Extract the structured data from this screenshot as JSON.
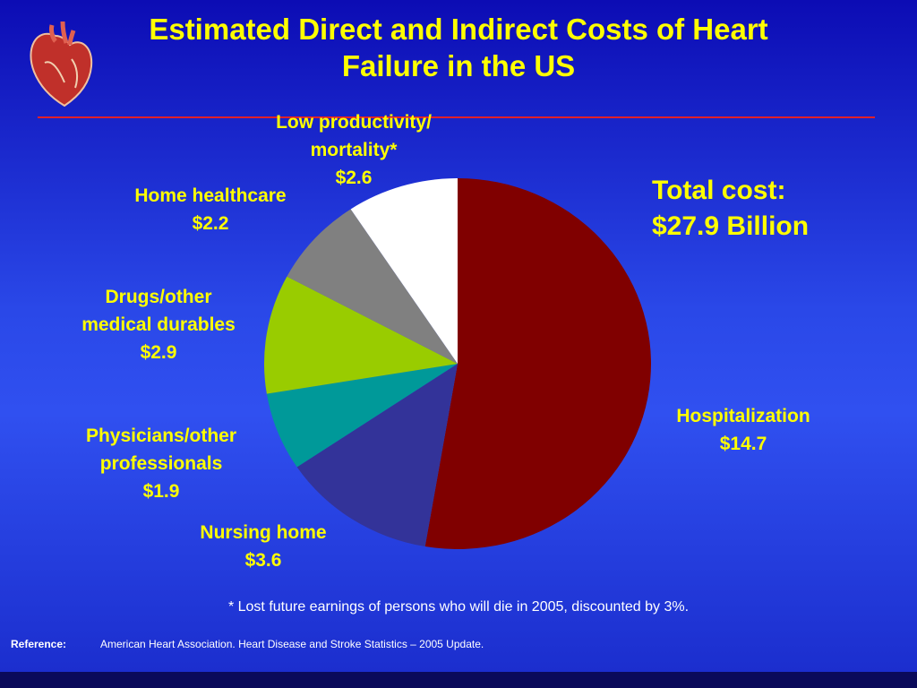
{
  "chart_data": {
    "type": "pie",
    "title": "Estimated Direct and Indirect Costs of Heart\nFailure in the US",
    "categories": [
      "Hospitalization",
      "Nursing home",
      "Physicians/other\nprofessionals",
      "Drugs/other\nmedical durables",
      "Home healthcare",
      "Low productivity/\nmortality*"
    ],
    "values": [
      14.7,
      3.6,
      1.9,
      2.9,
      2.2,
      2.6
    ],
    "value_labels": [
      "$14.7",
      "$3.6",
      "$1.9",
      "$2.9",
      "$2.2",
      "$2.6"
    ],
    "colors": [
      "#800000",
      "#333399",
      "#009999",
      "#99cc00",
      "#808080",
      "#ffffff"
    ],
    "annotations": {
      "total_label": "Total cost:",
      "total": "$27.9 Billion",
      "footnote": "* Lost future earnings of persons who will die in 2005, discounted by 3%.",
      "reference_label": "Reference:",
      "reference": "American Heart Association. Heart Disease and Stroke Statistics – 2005 Update."
    }
  }
}
